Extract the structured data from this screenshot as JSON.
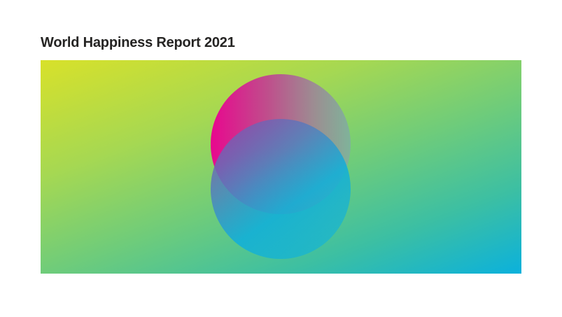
{
  "visual": {
    "title": "World Happiness Report 2021",
    "banner_colors": {
      "top_left": "#d8e12a",
      "bottom_right": "#0bb1dc",
      "circle_magenta": "#e8078e",
      "circle_cyan": "#14afd7"
    },
    "banner_icons": [
      "overlapping-circles-graphic"
    ]
  }
}
